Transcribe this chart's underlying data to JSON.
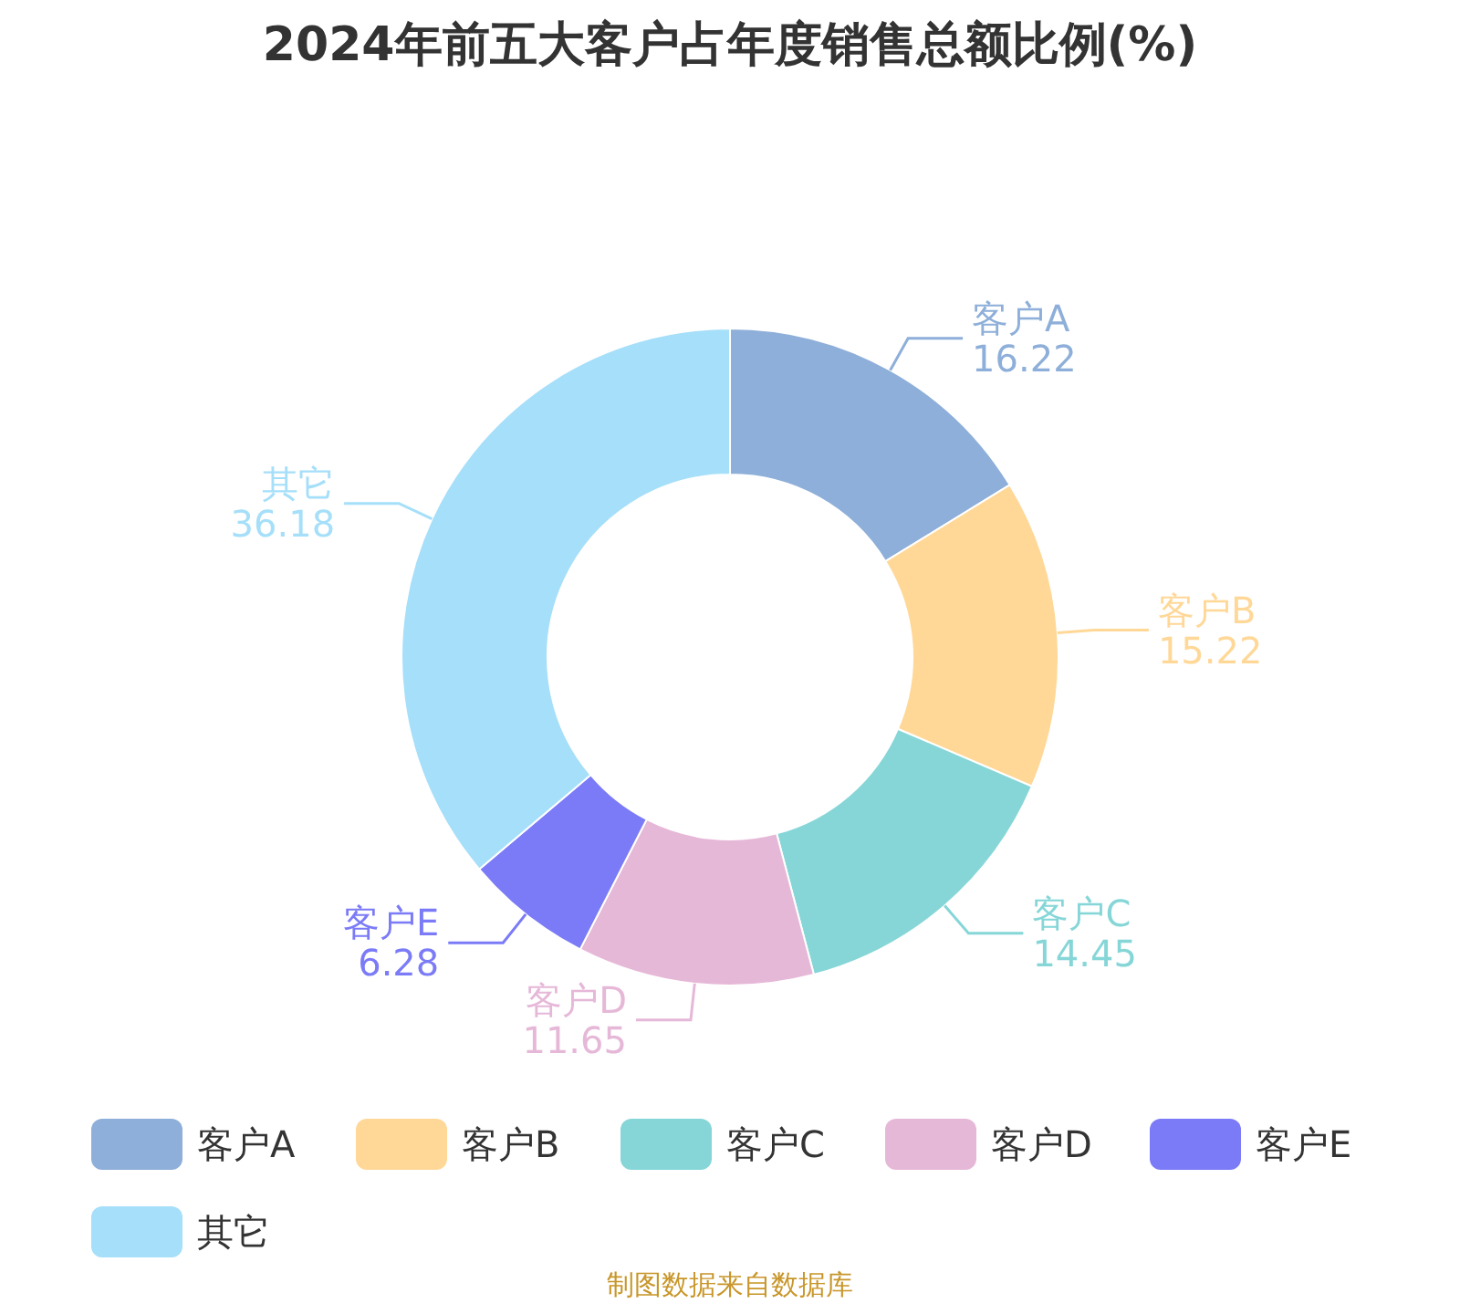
{
  "chart_data": {
    "type": "donut",
    "title": "2024年前五大客户占年度销售总额比例(%)",
    "categories": [
      "客户A",
      "客户B",
      "客户C",
      "客户D",
      "客户E",
      "其它"
    ],
    "values": [
      16.22,
      15.22,
      14.45,
      11.65,
      6.28,
      36.18
    ],
    "colors": [
      "#8eafd9",
      "#ffd898",
      "#86d6d8",
      "#e6b8d8",
      "#7b7bf7",
      "#a6dff9"
    ],
    "data_labels": true,
    "legend": "bottom",
    "annotations": [
      "制图数据来自数据库"
    ]
  }
}
